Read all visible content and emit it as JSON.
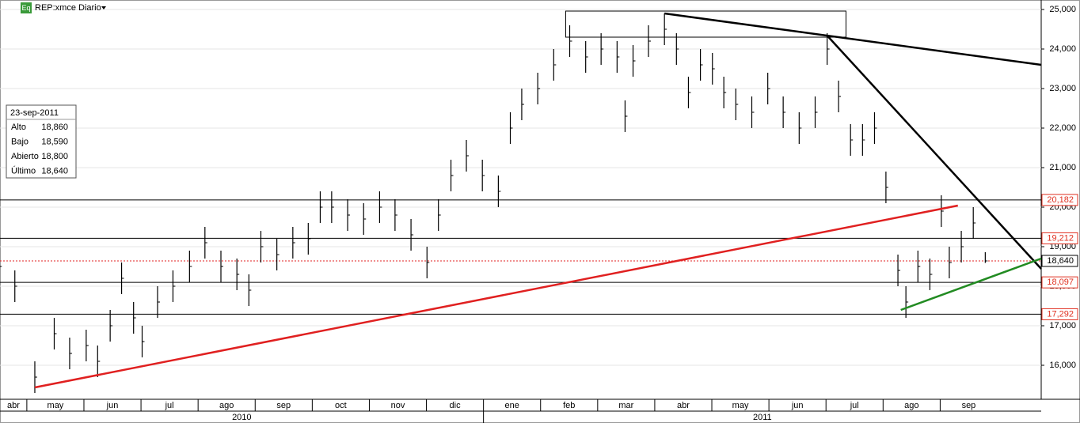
{
  "chart_data": {
    "type": "ohlc",
    "title": "REP:xmce Diario",
    "badge": "Eq",
    "x": [
      3.52,
      3.79,
      4.14,
      4.48,
      4.75,
      5.04,
      5.24,
      5.46,
      5.66,
      5.87,
      6.02,
      6.29,
      6.56,
      6.85,
      7.12,
      7.4,
      7.68,
      7.89,
      8.1,
      8.38,
      8.66,
      8.93,
      9.14,
      9.34,
      9.62,
      9.9,
      10.18,
      10.45,
      10.73,
      11.01,
      11.21,
      11.43,
      11.7,
      11.98,
      12.26,
      12.47,
      12.67,
      12.95,
      13.23,
      13.51,
      13.79,
      14.06,
      14.34,
      14.48,
      14.62,
      14.89,
      15.17,
      15.38,
      15.59,
      15.8,
      16.01,
      16.21,
      16.42,
      16.7,
      16.98,
      17.25,
      17.53,
      17.81,
      18.02,
      18.22,
      18.43,
      18.64,
      18.85,
      19.05,
      19.26,
      19.4,
      19.61,
      19.82,
      20.02,
      20.16,
      20.37,
      20.58,
      20.79
    ],
    "high": [
      18900,
      18400,
      16100,
      17200,
      16700,
      16900,
      16500,
      17400,
      18600,
      17600,
      17000,
      18000,
      18400,
      18900,
      19500,
      18900,
      18700,
      18300,
      19400,
      19200,
      19500,
      19600,
      20400,
      20400,
      20200,
      20100,
      20400,
      20200,
      19700,
      19000,
      20200,
      21200,
      21700,
      21200,
      20800,
      22400,
      23000,
      23400,
      24000,
      24600,
      24200,
      24400,
      24200,
      22700,
      24100,
      24600,
      24900,
      24400,
      23300,
      24000,
      23900,
      23300,
      23000,
      22800,
      23400,
      22800,
      22400,
      22800,
      24400,
      23200,
      22100,
      22100,
      22400,
      20900,
      18800,
      18000,
      18900,
      18700,
      20300,
      19000,
      19400,
      20000,
      18860
    ],
    "low": [
      18100,
      17600,
      15300,
      16400,
      15900,
      16100,
      15700,
      16600,
      17800,
      16800,
      16200,
      17200,
      17600,
      18100,
      18700,
      18100,
      17900,
      17500,
      18600,
      18400,
      18700,
      18800,
      19600,
      19600,
      19400,
      19300,
      19600,
      19400,
      18900,
      18200,
      19400,
      20400,
      20900,
      20400,
      20000,
      21600,
      22200,
      22600,
      23200,
      23800,
      23400,
      23600,
      23400,
      21900,
      23300,
      23800,
      24100,
      23600,
      22500,
      23200,
      23100,
      22500,
      22200,
      22000,
      22600,
      22000,
      21600,
      22000,
      23600,
      22400,
      21300,
      21300,
      21600,
      20100,
      18000,
      17200,
      18100,
      17900,
      19500,
      18200,
      18600,
      19200,
      18590
    ],
    "close": [
      18500,
      18000,
      15700,
      16800,
      16300,
      16500,
      16100,
      17000,
      18200,
      17200,
      16600,
      17600,
      18000,
      18500,
      19100,
      18500,
      18300,
      17900,
      19000,
      18800,
      19100,
      19200,
      20000,
      20000,
      19800,
      19700,
      20000,
      19800,
      19300,
      18600,
      19800,
      20800,
      21300,
      20800,
      20400,
      22000,
      22600,
      23000,
      23600,
      24200,
      23800,
      24000,
      23800,
      22300,
      23700,
      24200,
      24500,
      24000,
      22900,
      23600,
      23500,
      22900,
      22600,
      22400,
      23000,
      22400,
      22000,
      22400,
      24000,
      22800,
      21700,
      21700,
      22000,
      20500,
      18400,
      17600,
      18500,
      18300,
      19900,
      18600,
      19000,
      19600,
      18640
    ],
    "color": "#000000",
    "xlim": [
      3.53,
      21.77
    ],
    "ylim": [
      15140,
      25240
    ],
    "yticks": [
      {
        "value": 16000,
        "label": "16,000"
      },
      {
        "value": 17000,
        "label": "17,000"
      },
      {
        "value": 18000,
        "label": "18,000"
      },
      {
        "value": 19000,
        "label": "19,000"
      },
      {
        "value": 20000,
        "label": "20,000"
      },
      {
        "value": 21000,
        "label": "21,000"
      },
      {
        "value": 22000,
        "label": "22,000"
      },
      {
        "value": 23000,
        "label": "23,000"
      },
      {
        "value": 24000,
        "label": "24,000"
      },
      {
        "value": 25000,
        "label": "25,000"
      }
    ],
    "xticks": [
      {
        "value": 3,
        "label": "abr"
      },
      {
        "value": 4,
        "label": "may"
      },
      {
        "value": 5,
        "label": "jun"
      },
      {
        "value": 6,
        "label": "jul"
      },
      {
        "value": 7,
        "label": "ago"
      },
      {
        "value": 8,
        "label": "sep"
      },
      {
        "value": 9,
        "label": "oct"
      },
      {
        "value": 10,
        "label": "nov"
      },
      {
        "value": 11,
        "label": "dic"
      },
      {
        "value": 12,
        "label": "ene"
      },
      {
        "value": 13,
        "label": "feb"
      },
      {
        "value": 14,
        "label": "mar"
      },
      {
        "value": 15,
        "label": "abr"
      },
      {
        "value": 16,
        "label": "may"
      },
      {
        "value": 17,
        "label": "jun"
      },
      {
        "value": 18,
        "label": "jul"
      },
      {
        "value": 19,
        "label": "ago"
      },
      {
        "value": 20,
        "label": "sep"
      }
    ],
    "years": [
      {
        "value": 0,
        "label": "2010"
      },
      {
        "value": 12,
        "label": "2011"
      }
    ],
    "grid": true,
    "levels": [
      {
        "value": 20182,
        "label": "20,182",
        "color": "#e03020",
        "style": "solid"
      },
      {
        "value": 19212,
        "label": "19,212",
        "color": "#e03020",
        "style": "solid"
      },
      {
        "value": 18640,
        "label": "18,640",
        "color": "#000000",
        "style": "dotted"
      },
      {
        "value": 18097,
        "label": "18,097",
        "color": "#e03020",
        "style": "solid"
      },
      {
        "value": 17292,
        "label": "17,292",
        "color": "#e03020",
        "style": "solid"
      }
    ],
    "trendlines": [
      {
        "color": "#e02020",
        "x": [
          4.14,
          20.31
        ],
        "y": [
          15440,
          20040
        ]
      },
      {
        "color": "#000000",
        "x": [
          15.17,
          21.77
        ],
        "y": [
          24900,
          23600
        ]
      },
      {
        "color": "#000000",
        "x": [
          18.02,
          21.77
        ],
        "y": [
          24340,
          18440
        ]
      },
      {
        "color": "#228b22",
        "x": [
          19.31,
          21.77
        ],
        "y": [
          17400,
          18700
        ]
      }
    ],
    "box": {
      "x": [
        13.44,
        18.35
      ],
      "y": [
        24960,
        24300
      ]
    },
    "info": {
      "date": "23-sep-2011",
      "rows": [
        [
          "Alto",
          "18,860"
        ],
        [
          "Bajo",
          "18,590"
        ],
        [
          "Abierto",
          "18,800"
        ],
        [
          "Último",
          "18,640"
        ]
      ]
    }
  }
}
